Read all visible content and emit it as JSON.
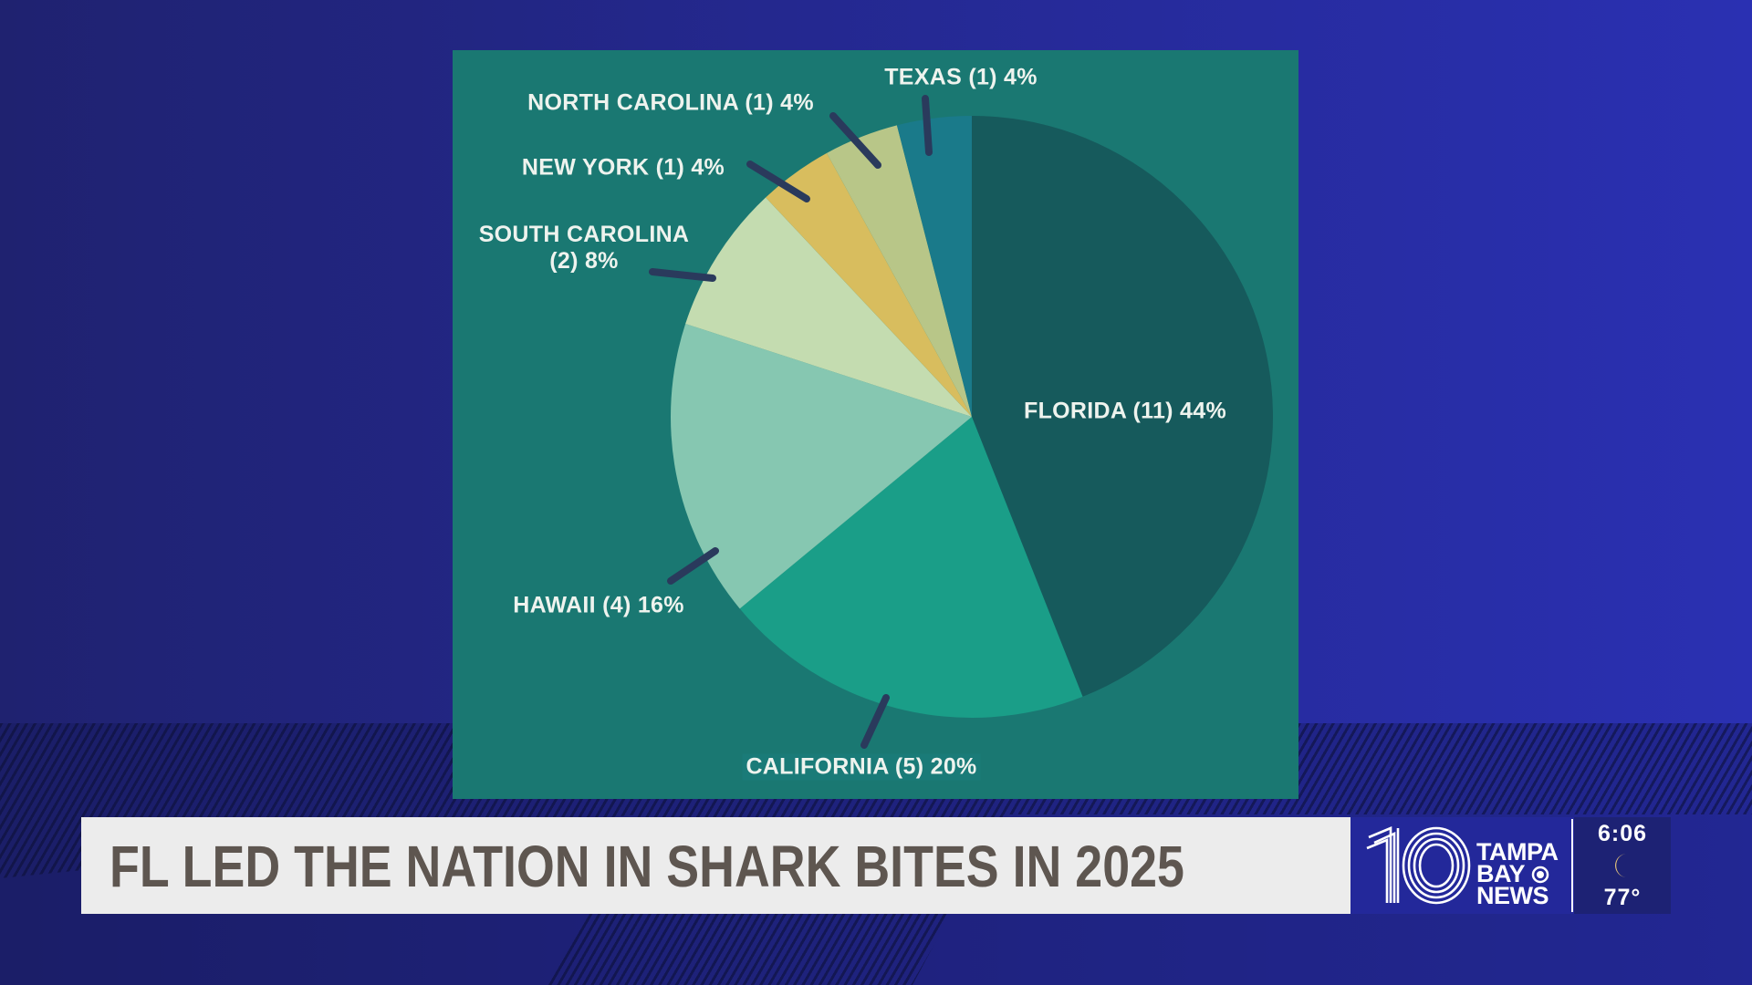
{
  "chart_data": {
    "type": "pie",
    "title": "",
    "slices": [
      {
        "label": "FLORIDA (11) 44%",
        "state": "Florida",
        "count": 11,
        "percent": 44,
        "color": "#165a5c"
      },
      {
        "label": "CALIFORNIA (5) 20%",
        "state": "California",
        "count": 5,
        "percent": 20,
        "color": "#1a9e88"
      },
      {
        "label": "HAWAII (4) 16%",
        "state": "Hawaii",
        "count": 4,
        "percent": 16,
        "color": "#86c7b1"
      },
      {
        "label": "SOUTH CAROLINA (2) 8%",
        "label_line1": "SOUTH CAROLINA",
        "label_line2": "(2) 8%",
        "state": "South Carolina",
        "count": 2,
        "percent": 8,
        "color": "#c4dcb0"
      },
      {
        "label": "NEW YORK (1) 4%",
        "state": "New York",
        "count": 1,
        "percent": 4,
        "color": "#d8bd5e"
      },
      {
        "label": "NORTH CAROLINA (1) 4%",
        "state": "North Carolina",
        "count": 1,
        "percent": 4,
        "color": "#b8c688"
      },
      {
        "label": "TEXAS (1) 4%",
        "state": "Texas",
        "count": 1,
        "percent": 4,
        "color": "#1a7a8a"
      }
    ],
    "start_angle": "12 o'clock, clockwise"
  },
  "headline": "FL LED THE NATION IN SHARK BITES IN 2025",
  "logo": {
    "number": "10",
    "line1": "TAMPA",
    "line2": "BAY",
    "line3": "NEWS"
  },
  "weather": {
    "time": "6:06",
    "icon": "moon-icon",
    "temperature": "77°"
  },
  "colors": {
    "panel": "#1a7872",
    "leader": "#2a3a5c",
    "lower_third": "#ececec",
    "headline_text": "#5e5650",
    "logo_bg": "#23289a"
  }
}
